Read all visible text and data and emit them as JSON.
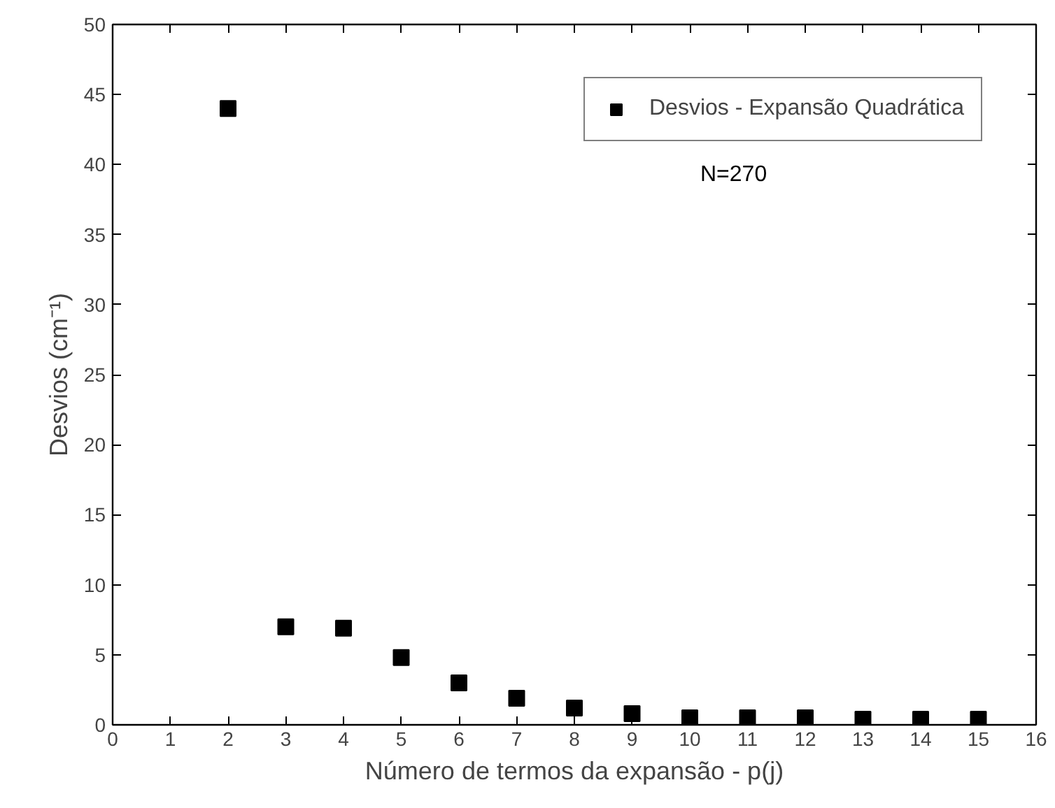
{
  "chart_data": {
    "type": "scatter",
    "xlabel": "Número de termos da expansão - p(j)",
    "ylabel": "Desvios (cm⁻¹)",
    "x": [
      2,
      3,
      4,
      5,
      6,
      7,
      8,
      9,
      10,
      11,
      12,
      13,
      14,
      15
    ],
    "series": [
      {
        "name": "Desvios - Expansão Quadrática",
        "color": "#000000",
        "values": [
          44,
          7.0,
          6.9,
          4.8,
          3.0,
          1.9,
          1.2,
          0.8,
          0.5,
          0.5,
          0.5,
          0.4,
          0.4,
          0.4
        ]
      }
    ],
    "xlim": [
      0,
      16
    ],
    "xticks": [
      0,
      1,
      2,
      3,
      4,
      5,
      6,
      7,
      8,
      9,
      10,
      11,
      12,
      13,
      14,
      15,
      16
    ],
    "ylim": [
      0,
      50
    ],
    "yticks": [
      0,
      5,
      10,
      15,
      20,
      25,
      30,
      35,
      40,
      45,
      50
    ],
    "marker": "square",
    "legend": "top right",
    "grid": false,
    "annotations": [
      "N=270"
    ]
  }
}
